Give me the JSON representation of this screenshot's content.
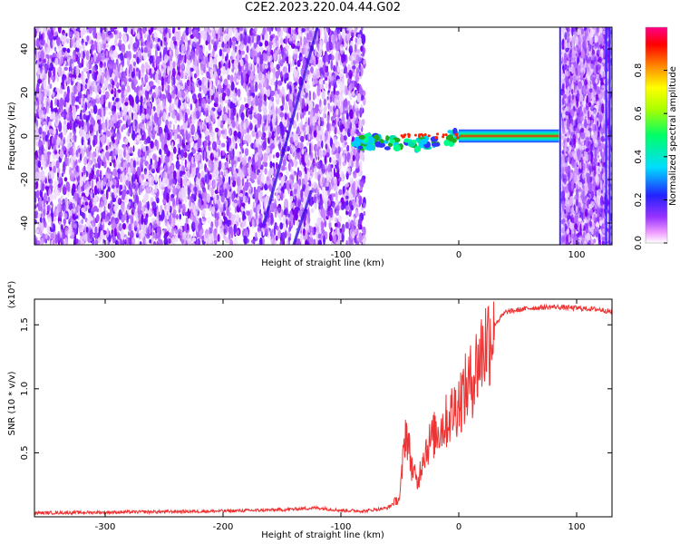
{
  "title": "C2E2.2023.220.04.44.G02",
  "chart_data": [
    {
      "type": "heatmap",
      "xlabel": "Height of straight line (km)",
      "ylabel": "Frequency (Hz)",
      "xlim": [
        -360,
        130
      ],
      "ylim": [
        -50,
        50
      ],
      "x_ticks": [
        -300,
        -200,
        -100,
        0,
        100
      ],
      "y_ticks": [
        -40,
        -20,
        0,
        20,
        40
      ],
      "colorbar": {
        "label": "Normalized spectral amplitude",
        "range": [
          0,
          1
        ],
        "ticks": [
          "0.0",
          "0.2",
          "0.4",
          "0.6",
          "0.8"
        ]
      },
      "regions": [
        {
          "name": "noise",
          "x": [
            -360,
            -80
          ],
          "y": [
            -50,
            50
          ]
        },
        {
          "name": "noise",
          "x": [
            88,
            130
          ],
          "y": [
            -50,
            50
          ]
        },
        {
          "name": "carrier",
          "x": [
            -90,
            85
          ],
          "y_center": 0
        }
      ]
    },
    {
      "type": "line",
      "xlabel": "Height of straight line (km)",
      "ylabel": "SNR (10 * v/v)",
      "y_multiplier": "(x10⁴)",
      "xlim": [
        -360,
        130
      ],
      "ylim": [
        0,
        17000
      ],
      "x_ticks": [
        -300,
        -200,
        -100,
        0,
        100
      ],
      "y_ticks": [
        0.5,
        1.0,
        1.5
      ],
      "y_tick_labels": [
        "0.5",
        "1.0",
        "1.5"
      ],
      "color": "#ee3333",
      "series": [
        {
          "x": [
            -360,
            -300,
            -200,
            -150,
            -120,
            -100,
            -80,
            -60,
            -50,
            -45,
            -40,
            -35,
            -30,
            -20,
            -10,
            0,
            10,
            20,
            30,
            40,
            60,
            80,
            100,
            120,
            130
          ],
          "y": [
            300,
            350,
            450,
            550,
            700,
            500,
            450,
            700,
            1500,
            7000,
            4000,
            2500,
            5000,
            6500,
            7500,
            9000,
            10500,
            13000,
            15000,
            16000,
            16300,
            16400,
            16300,
            16200,
            16000
          ]
        }
      ]
    }
  ]
}
